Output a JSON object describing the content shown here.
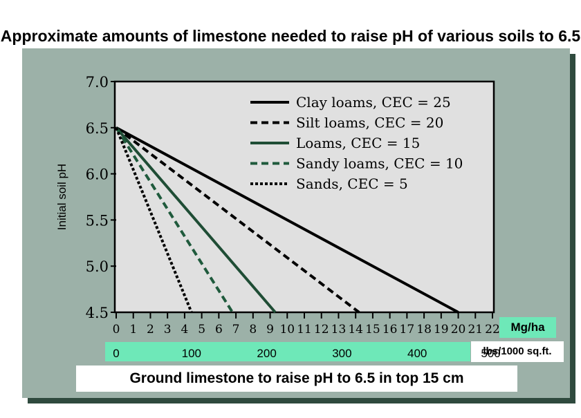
{
  "chart_data": {
    "type": "line",
    "title": "Approximate amounts of limestone needed to raise pH of various soils to 6.5",
    "ylabel": "Initial soil pH",
    "xlabel": "Ground limestone to raise pH to 6.5 in top 15 cm",
    "x_unit": "Mg/ha",
    "secondary_x_unit": "lbs/1000 sq.ft.",
    "xlim": [
      0,
      22
    ],
    "ylim": [
      4.5,
      7.0
    ],
    "x_ticks": [
      0,
      1,
      2,
      3,
      4,
      5,
      6,
      7,
      8,
      9,
      10,
      11,
      12,
      13,
      14,
      15,
      16,
      17,
      18,
      19,
      20,
      21,
      22
    ],
    "x_tick_labels": [
      "0",
      "1",
      "2",
      "3",
      "4",
      "5",
      "6",
      "7",
      "8",
      "9",
      "10",
      "11",
      "12",
      "13",
      "14",
      "15",
      "16",
      "17",
      "18",
      "19",
      "20",
      "21",
      "22"
    ],
    "y_ticks": [
      4.5,
      5.0,
      5.5,
      6.0,
      6.5,
      7.0
    ],
    "y_tick_labels": [
      "4.5",
      "5.0",
      "5.5",
      "6.0",
      "6.5",
      "7.0"
    ],
    "secondary_x_ticks": [
      {
        "label": "0",
        "mgha": 0
      },
      {
        "label": "100",
        "mgha": 4.4
      },
      {
        "label": "200",
        "mgha": 8.8
      },
      {
        "label": "300",
        "mgha": 13.2
      },
      {
        "label": "400",
        "mgha": 17.6
      },
      {
        "label": "500",
        "mgha": 21.9
      }
    ],
    "grid": false,
    "legend_position": "top-right",
    "series": [
      {
        "name": "Clay loams, CEC = 25",
        "color": "#000000",
        "dash": "solid",
        "points": [
          [
            0,
            6.5
          ],
          [
            20,
            4.5
          ]
        ]
      },
      {
        "name": "Silt loams, CEC = 20",
        "color": "#000000",
        "dash": "dashed",
        "points": [
          [
            0,
            6.5
          ],
          [
            14.2,
            4.5
          ]
        ]
      },
      {
        "name": "Loams, CEC = 15",
        "color": "#1f4d35",
        "dash": "solid",
        "points": [
          [
            0,
            6.5
          ],
          [
            9.3,
            4.5
          ]
        ]
      },
      {
        "name": "Sandy loams, CEC = 10",
        "color": "#1f5a3c",
        "dash": "dashed",
        "points": [
          [
            0,
            6.5
          ],
          [
            6.8,
            4.5
          ]
        ]
      },
      {
        "name": "Sands, CEC = 5",
        "color": "#000000",
        "dash": "dotted",
        "points": [
          [
            0,
            6.5
          ],
          [
            4.4,
            4.5
          ]
        ]
      }
    ]
  }
}
